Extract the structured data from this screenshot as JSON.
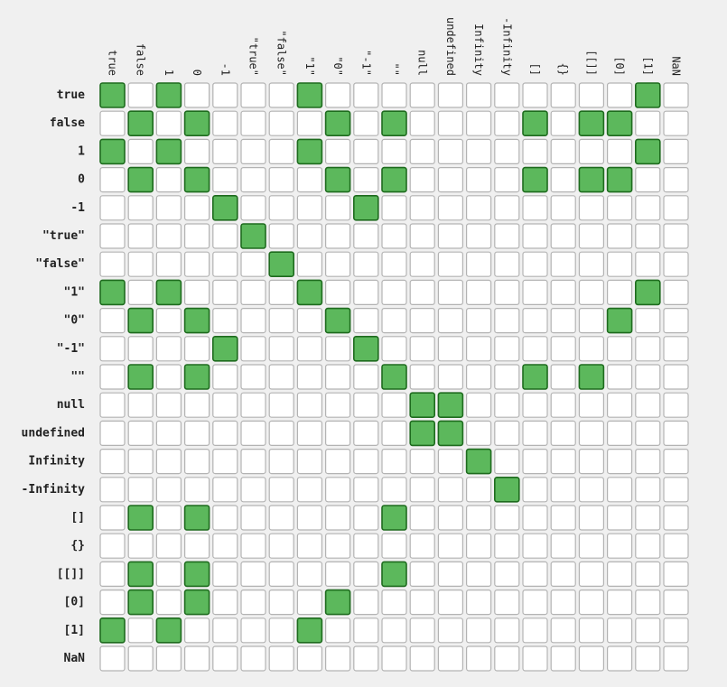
{
  "chart_data": {
    "type": "heatmap",
    "labels": [
      "true",
      "false",
      "1",
      "0",
      "-1",
      "\"true\"",
      "\"false\"",
      "\"1\"",
      "\"0\"",
      "\"-1\"",
      "\"\"",
      "null",
      "undefined",
      "Infinity",
      "-Infinity",
      "[]",
      "{}",
      "[[]]",
      "[0]",
      "[1]",
      "NaN"
    ],
    "matrix": [
      [
        1,
        0,
        1,
        0,
        0,
        0,
        0,
        1,
        0,
        0,
        0,
        0,
        0,
        0,
        0,
        0,
        0,
        0,
        0,
        1,
        0
      ],
      [
        0,
        1,
        0,
        1,
        0,
        0,
        0,
        0,
        1,
        0,
        1,
        0,
        0,
        0,
        0,
        1,
        0,
        1,
        1,
        0,
        0
      ],
      [
        1,
        0,
        1,
        0,
        0,
        0,
        0,
        1,
        0,
        0,
        0,
        0,
        0,
        0,
        0,
        0,
        0,
        0,
        0,
        1,
        0
      ],
      [
        0,
        1,
        0,
        1,
        0,
        0,
        0,
        0,
        1,
        0,
        1,
        0,
        0,
        0,
        0,
        1,
        0,
        1,
        1,
        0,
        0
      ],
      [
        0,
        0,
        0,
        0,
        1,
        0,
        0,
        0,
        0,
        1,
        0,
        0,
        0,
        0,
        0,
        0,
        0,
        0,
        0,
        0,
        0
      ],
      [
        0,
        0,
        0,
        0,
        0,
        1,
        0,
        0,
        0,
        0,
        0,
        0,
        0,
        0,
        0,
        0,
        0,
        0,
        0,
        0,
        0
      ],
      [
        0,
        0,
        0,
        0,
        0,
        0,
        1,
        0,
        0,
        0,
        0,
        0,
        0,
        0,
        0,
        0,
        0,
        0,
        0,
        0,
        0
      ],
      [
        1,
        0,
        1,
        0,
        0,
        0,
        0,
        1,
        0,
        0,
        0,
        0,
        0,
        0,
        0,
        0,
        0,
        0,
        0,
        1,
        0
      ],
      [
        0,
        1,
        0,
        1,
        0,
        0,
        0,
        0,
        1,
        0,
        0,
        0,
        0,
        0,
        0,
        0,
        0,
        0,
        1,
        0,
        0
      ],
      [
        0,
        0,
        0,
        0,
        1,
        0,
        0,
        0,
        0,
        1,
        0,
        0,
        0,
        0,
        0,
        0,
        0,
        0,
        0,
        0,
        0
      ],
      [
        0,
        1,
        0,
        1,
        0,
        0,
        0,
        0,
        0,
        0,
        1,
        0,
        0,
        0,
        0,
        1,
        0,
        1,
        0,
        0,
        0
      ],
      [
        0,
        0,
        0,
        0,
        0,
        0,
        0,
        0,
        0,
        0,
        0,
        1,
        1,
        0,
        0,
        0,
        0,
        0,
        0,
        0,
        0
      ],
      [
        0,
        0,
        0,
        0,
        0,
        0,
        0,
        0,
        0,
        0,
        0,
        1,
        1,
        0,
        0,
        0,
        0,
        0,
        0,
        0,
        0
      ],
      [
        0,
        0,
        0,
        0,
        0,
        0,
        0,
        0,
        0,
        0,
        0,
        0,
        0,
        1,
        0,
        0,
        0,
        0,
        0,
        0,
        0
      ],
      [
        0,
        0,
        0,
        0,
        0,
        0,
        0,
        0,
        0,
        0,
        0,
        0,
        0,
        0,
        1,
        0,
        0,
        0,
        0,
        0,
        0
      ],
      [
        0,
        1,
        0,
        1,
        0,
        0,
        0,
        0,
        0,
        0,
        1,
        0,
        0,
        0,
        0,
        0,
        0,
        0,
        0,
        0,
        0
      ],
      [
        0,
        0,
        0,
        0,
        0,
        0,
        0,
        0,
        0,
        0,
        0,
        0,
        0,
        0,
        0,
        0,
        0,
        0,
        0,
        0,
        0
      ],
      [
        0,
        1,
        0,
        1,
        0,
        0,
        0,
        0,
        0,
        0,
        1,
        0,
        0,
        0,
        0,
        0,
        0,
        0,
        0,
        0,
        0
      ],
      [
        0,
        1,
        0,
        1,
        0,
        0,
        0,
        0,
        1,
        0,
        0,
        0,
        0,
        0,
        0,
        0,
        0,
        0,
        0,
        0,
        0
      ],
      [
        1,
        0,
        1,
        0,
        0,
        0,
        0,
        1,
        0,
        0,
        0,
        0,
        0,
        0,
        0,
        0,
        0,
        0,
        0,
        0,
        0
      ],
      [
        0,
        0,
        0,
        0,
        0,
        0,
        0,
        0,
        0,
        0,
        0,
        0,
        0,
        0,
        0,
        0,
        0,
        0,
        0,
        0,
        0
      ]
    ],
    "colors": {
      "true_fill": "#5cb85c",
      "true_stroke": "#1e6b1e",
      "false_fill": "#ffffff",
      "false_stroke": "#b3b3b3",
      "background": "#f0f0f0",
      "text": "#222222"
    },
    "grid": true,
    "legend": "none"
  }
}
